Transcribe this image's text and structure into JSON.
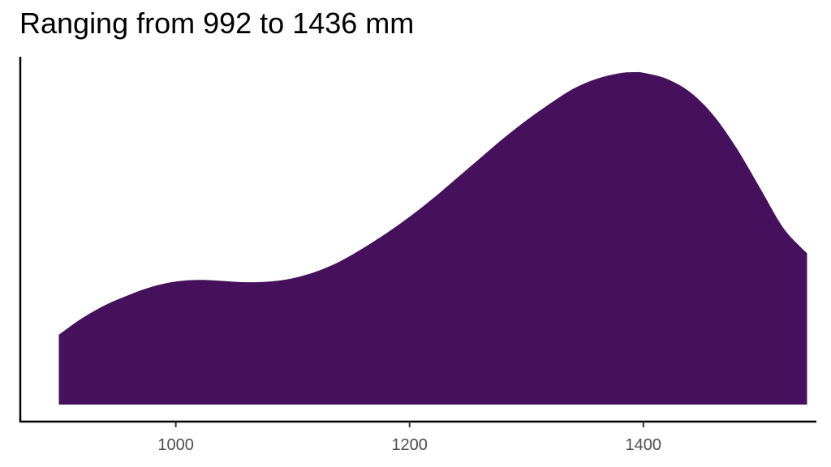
{
  "chart_data": {
    "type": "area",
    "title": "Ranging from 992 to 1436 mm",
    "xlabel": "",
    "ylabel": "",
    "xlim": [
      867,
      1548
    ],
    "ylim": [
      0,
      1.05
    ],
    "x_ticks": [
      1000,
      1200,
      1400
    ],
    "grid": false,
    "legend": "none",
    "fill_color": "#45105C",
    "series": [
      {
        "x": [
          900,
          920,
          940,
          960,
          980,
          1000,
          1020,
          1040,
          1060,
          1080,
          1100,
          1120,
          1140,
          1160,
          1180,
          1200,
          1220,
          1240,
          1260,
          1280,
          1300,
          1320,
          1340,
          1360,
          1380,
          1393,
          1400,
          1420,
          1440,
          1460,
          1480,
          1500,
          1520,
          1540
        ],
        "y": [
          0.21,
          0.26,
          0.3,
          0.33,
          0.355,
          0.37,
          0.375,
          0.372,
          0.368,
          0.37,
          0.38,
          0.4,
          0.43,
          0.47,
          0.515,
          0.565,
          0.62,
          0.68,
          0.74,
          0.8,
          0.855,
          0.905,
          0.95,
          0.98,
          0.997,
          1.0,
          0.998,
          0.98,
          0.94,
          0.87,
          0.77,
          0.65,
          0.53,
          0.455
        ]
      }
    ]
  }
}
